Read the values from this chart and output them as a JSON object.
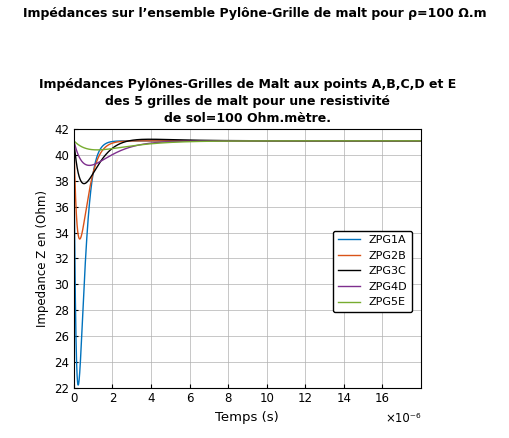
{
  "title_line1": "Impédances Pylônes-Grilles de Malt aux points A,B,C,D et E",
  "title_line2": "des 5 grilles de malt pour une resistivité",
  "title_line3": "de sol=100 Ohm.mètre.",
  "suptitle": "Impédances sur l’ensemble Pylône-Grille de malt pour ρ=100 Ω.m",
  "xlabel": "Temps (s)",
  "ylabel": "Impedance Z en (Ohm)",
  "xlim": [
    0,
    1.8e-05
  ],
  "ylim": [
    22,
    42
  ],
  "yticks": [
    22,
    24,
    26,
    28,
    30,
    32,
    34,
    36,
    38,
    40,
    42
  ],
  "xticks": [
    0,
    2e-06,
    4e-06,
    6e-06,
    8e-06,
    1e-05,
    1.2e-05,
    1.4e-05,
    1.6e-05
  ],
  "xtick_labels": [
    "0",
    "2",
    "4",
    "6",
    "8",
    "10",
    "12",
    "14",
    "16"
  ],
  "xscale_label": "×10⁻⁶",
  "series": [
    {
      "name": "ZPG1A",
      "color": "#0072BD",
      "steady": 41.1,
      "min_val": 22.2,
      "tau_fall": 1.5e-07,
      "tau_rise": 9e-07,
      "t_min": 2.2e-07,
      "overshoot": 0.0
    },
    {
      "name": "ZPG2B",
      "color": "#D95319",
      "steady": 41.1,
      "min_val": 33.5,
      "tau_fall": 2e-07,
      "tau_rise": 1.1e-06,
      "t_min": 3e-07,
      "overshoot": 0.0
    },
    {
      "name": "ZPG3C",
      "color": "#000000",
      "steady": 41.1,
      "min_val": 37.5,
      "tau_fall": 2.5e-07,
      "tau_rise": 1.4e-06,
      "t_min": 5.5e-07,
      "overshoot": 0.4
    },
    {
      "name": "ZPG4D",
      "color": "#7E2F8E",
      "steady": 41.1,
      "min_val": 39.2,
      "tau_fall": 3e-07,
      "tau_rise": 2e-06,
      "t_min": 8e-07,
      "overshoot": 0.0
    },
    {
      "name": "ZPG5E",
      "color": "#77AC30",
      "steady": 41.1,
      "min_val": 40.4,
      "tau_fall": 4e-07,
      "tau_rise": 3.2e-06,
      "t_min": 1.2e-06,
      "overshoot": 0.0
    }
  ],
  "background_color": "#ffffff",
  "grid_color": "#b0b0b0",
  "title_fontsize": 9,
  "suptitle_fontsize": 9,
  "legend_fontsize": 8,
  "axis_fontsize": 8.5
}
